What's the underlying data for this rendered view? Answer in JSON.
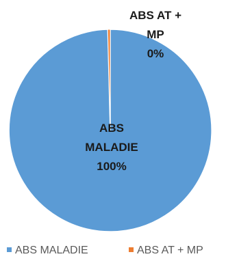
{
  "chart_data": {
    "type": "pie",
    "title": "",
    "labels": [
      "ABS MALADIE",
      "ABS AT + MP"
    ],
    "values": [
      99.6,
      0.4
    ],
    "colors": [
      "#5B9BD5",
      "#ED7D31"
    ],
    "slice_stroke": "#ffffff",
    "data_labels": [
      {
        "lines": [
          "ABS",
          "MALADIE",
          "100%"
        ]
      },
      {
        "lines": [
          "ABS AT +",
          "MP",
          "0%"
        ]
      }
    ],
    "legend": {
      "position": "bottom",
      "entries": [
        {
          "label": "ABS MALADIE",
          "color": "#5B9BD5"
        },
        {
          "label": "ABS AT + MP",
          "color": "#ED7D31"
        }
      ]
    }
  }
}
